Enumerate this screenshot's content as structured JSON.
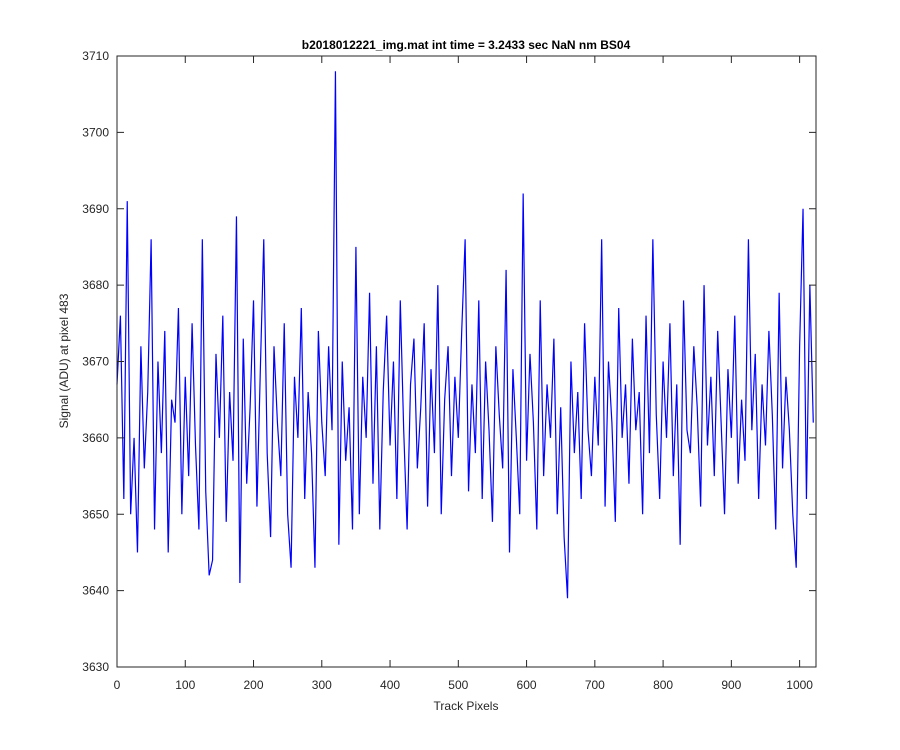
{
  "chart_data": {
    "type": "line",
    "title": "b2018012221_img.mat int time = 3.2433 sec  NaN nm BS04",
    "x_label": "Track Pixels",
    "y_label": "Signal (ADU) at pixel 483",
    "x": [
      0,
      5,
      10,
      15,
      20,
      25,
      30,
      35,
      40,
      45,
      50,
      55,
      60,
      65,
      70,
      75,
      80,
      85,
      90,
      95,
      100,
      105,
      110,
      115,
      120,
      125,
      130,
      135,
      140,
      145,
      150,
      155,
      160,
      165,
      170,
      175,
      180,
      185,
      190,
      195,
      200,
      205,
      210,
      215,
      220,
      225,
      230,
      235,
      240,
      245,
      250,
      255,
      260,
      265,
      270,
      275,
      280,
      285,
      290,
      295,
      300,
      305,
      310,
      315,
      320,
      325,
      330,
      335,
      340,
      345,
      350,
      355,
      360,
      365,
      370,
      375,
      380,
      385,
      390,
      395,
      400,
      405,
      410,
      415,
      420,
      425,
      430,
      435,
      440,
      445,
      450,
      455,
      460,
      465,
      470,
      475,
      480,
      485,
      490,
      495,
      500,
      505,
      510,
      515,
      520,
      525,
      530,
      535,
      540,
      545,
      550,
      555,
      560,
      565,
      570,
      575,
      580,
      585,
      590,
      595,
      600,
      605,
      610,
      615,
      620,
      625,
      630,
      635,
      640,
      645,
      650,
      655,
      660,
      665,
      670,
      675,
      680,
      685,
      690,
      695,
      700,
      705,
      710,
      715,
      720,
      725,
      730,
      735,
      740,
      745,
      750,
      755,
      760,
      765,
      770,
      775,
      780,
      785,
      790,
      795,
      800,
      805,
      810,
      815,
      820,
      825,
      830,
      835,
      840,
      845,
      850,
      855,
      860,
      865,
      870,
      875,
      880,
      885,
      890,
      895,
      900,
      905,
      910,
      915,
      920,
      925,
      930,
      935,
      940,
      945,
      950,
      955,
      960,
      965,
      970,
      975,
      980,
      985,
      990,
      995,
      1000,
      1005,
      1010,
      1015,
      1020
    ],
    "series": [
      {
        "color": "#0000ff",
        "values": [
          3667,
          3676,
          3652,
          3691,
          3650,
          3660,
          3645,
          3672,
          3656,
          3666,
          3686,
          3648,
          3670,
          3658,
          3674,
          3645,
          3665,
          3662,
          3677,
          3650,
          3668,
          3655,
          3675,
          3659,
          3648,
          3686,
          3653,
          3642,
          3644,
          3671,
          3660,
          3676,
          3649,
          3666,
          3657,
          3689,
          3641,
          3673,
          3654,
          3664,
          3678,
          3651,
          3669,
          3686,
          3658,
          3647,
          3672,
          3662,
          3655,
          3675,
          3650,
          3643,
          3668,
          3660,
          3677,
          3652,
          3666,
          3658,
          3643,
          3674,
          3662,
          3655,
          3672,
          3661,
          3708,
          3646,
          3670,
          3657,
          3664,
          3648,
          3685,
          3650,
          3668,
          3660,
          3679,
          3654,
          3672,
          3648,
          3666,
          3676,
          3659,
          3670,
          3652,
          3678,
          3661,
          3648,
          3667,
          3673,
          3656,
          3664,
          3675,
          3651,
          3669,
          3658,
          3680,
          3650,
          3665,
          3672,
          3655,
          3668,
          3660,
          3674,
          3686,
          3653,
          3667,
          3658,
          3678,
          3652,
          3670,
          3661,
          3649,
          3672,
          3663,
          3656,
          3682,
          3645,
          3669,
          3660,
          3650,
          3692,
          3657,
          3671,
          3662,
          3648,
          3678,
          3655,
          3667,
          3660,
          3673,
          3650,
          3664,
          3647,
          3639,
          3670,
          3658,
          3666,
          3652,
          3675,
          3661,
          3655,
          3668,
          3659,
          3686,
          3651,
          3670,
          3662,
          3649,
          3677,
          3660,
          3667,
          3654,
          3673,
          3661,
          3666,
          3650,
          3676,
          3658,
          3686,
          3663,
          3652,
          3670,
          3660,
          3675,
          3655,
          3667,
          3646,
          3678,
          3661,
          3658,
          3672,
          3664,
          3651,
          3680,
          3659,
          3668,
          3655,
          3674,
          3662,
          3650,
          3669,
          3660,
          3676,
          3654,
          3665,
          3657,
          3686,
          3661,
          3671,
          3652,
          3667,
          3659,
          3674,
          3663,
          3648,
          3679,
          3656,
          3668,
          3661,
          3650,
          3643,
          3672,
          3690,
          3652,
          3680,
          3662
        ]
      }
    ],
    "xlim": [
      0,
      1024
    ],
    "ylim": [
      3630,
      3710
    ],
    "xticks": [
      0,
      100,
      200,
      300,
      400,
      500,
      600,
      700,
      800,
      900,
      1000
    ],
    "yticks": [
      3630,
      3640,
      3650,
      3660,
      3670,
      3680,
      3690,
      3700,
      3710
    ]
  }
}
